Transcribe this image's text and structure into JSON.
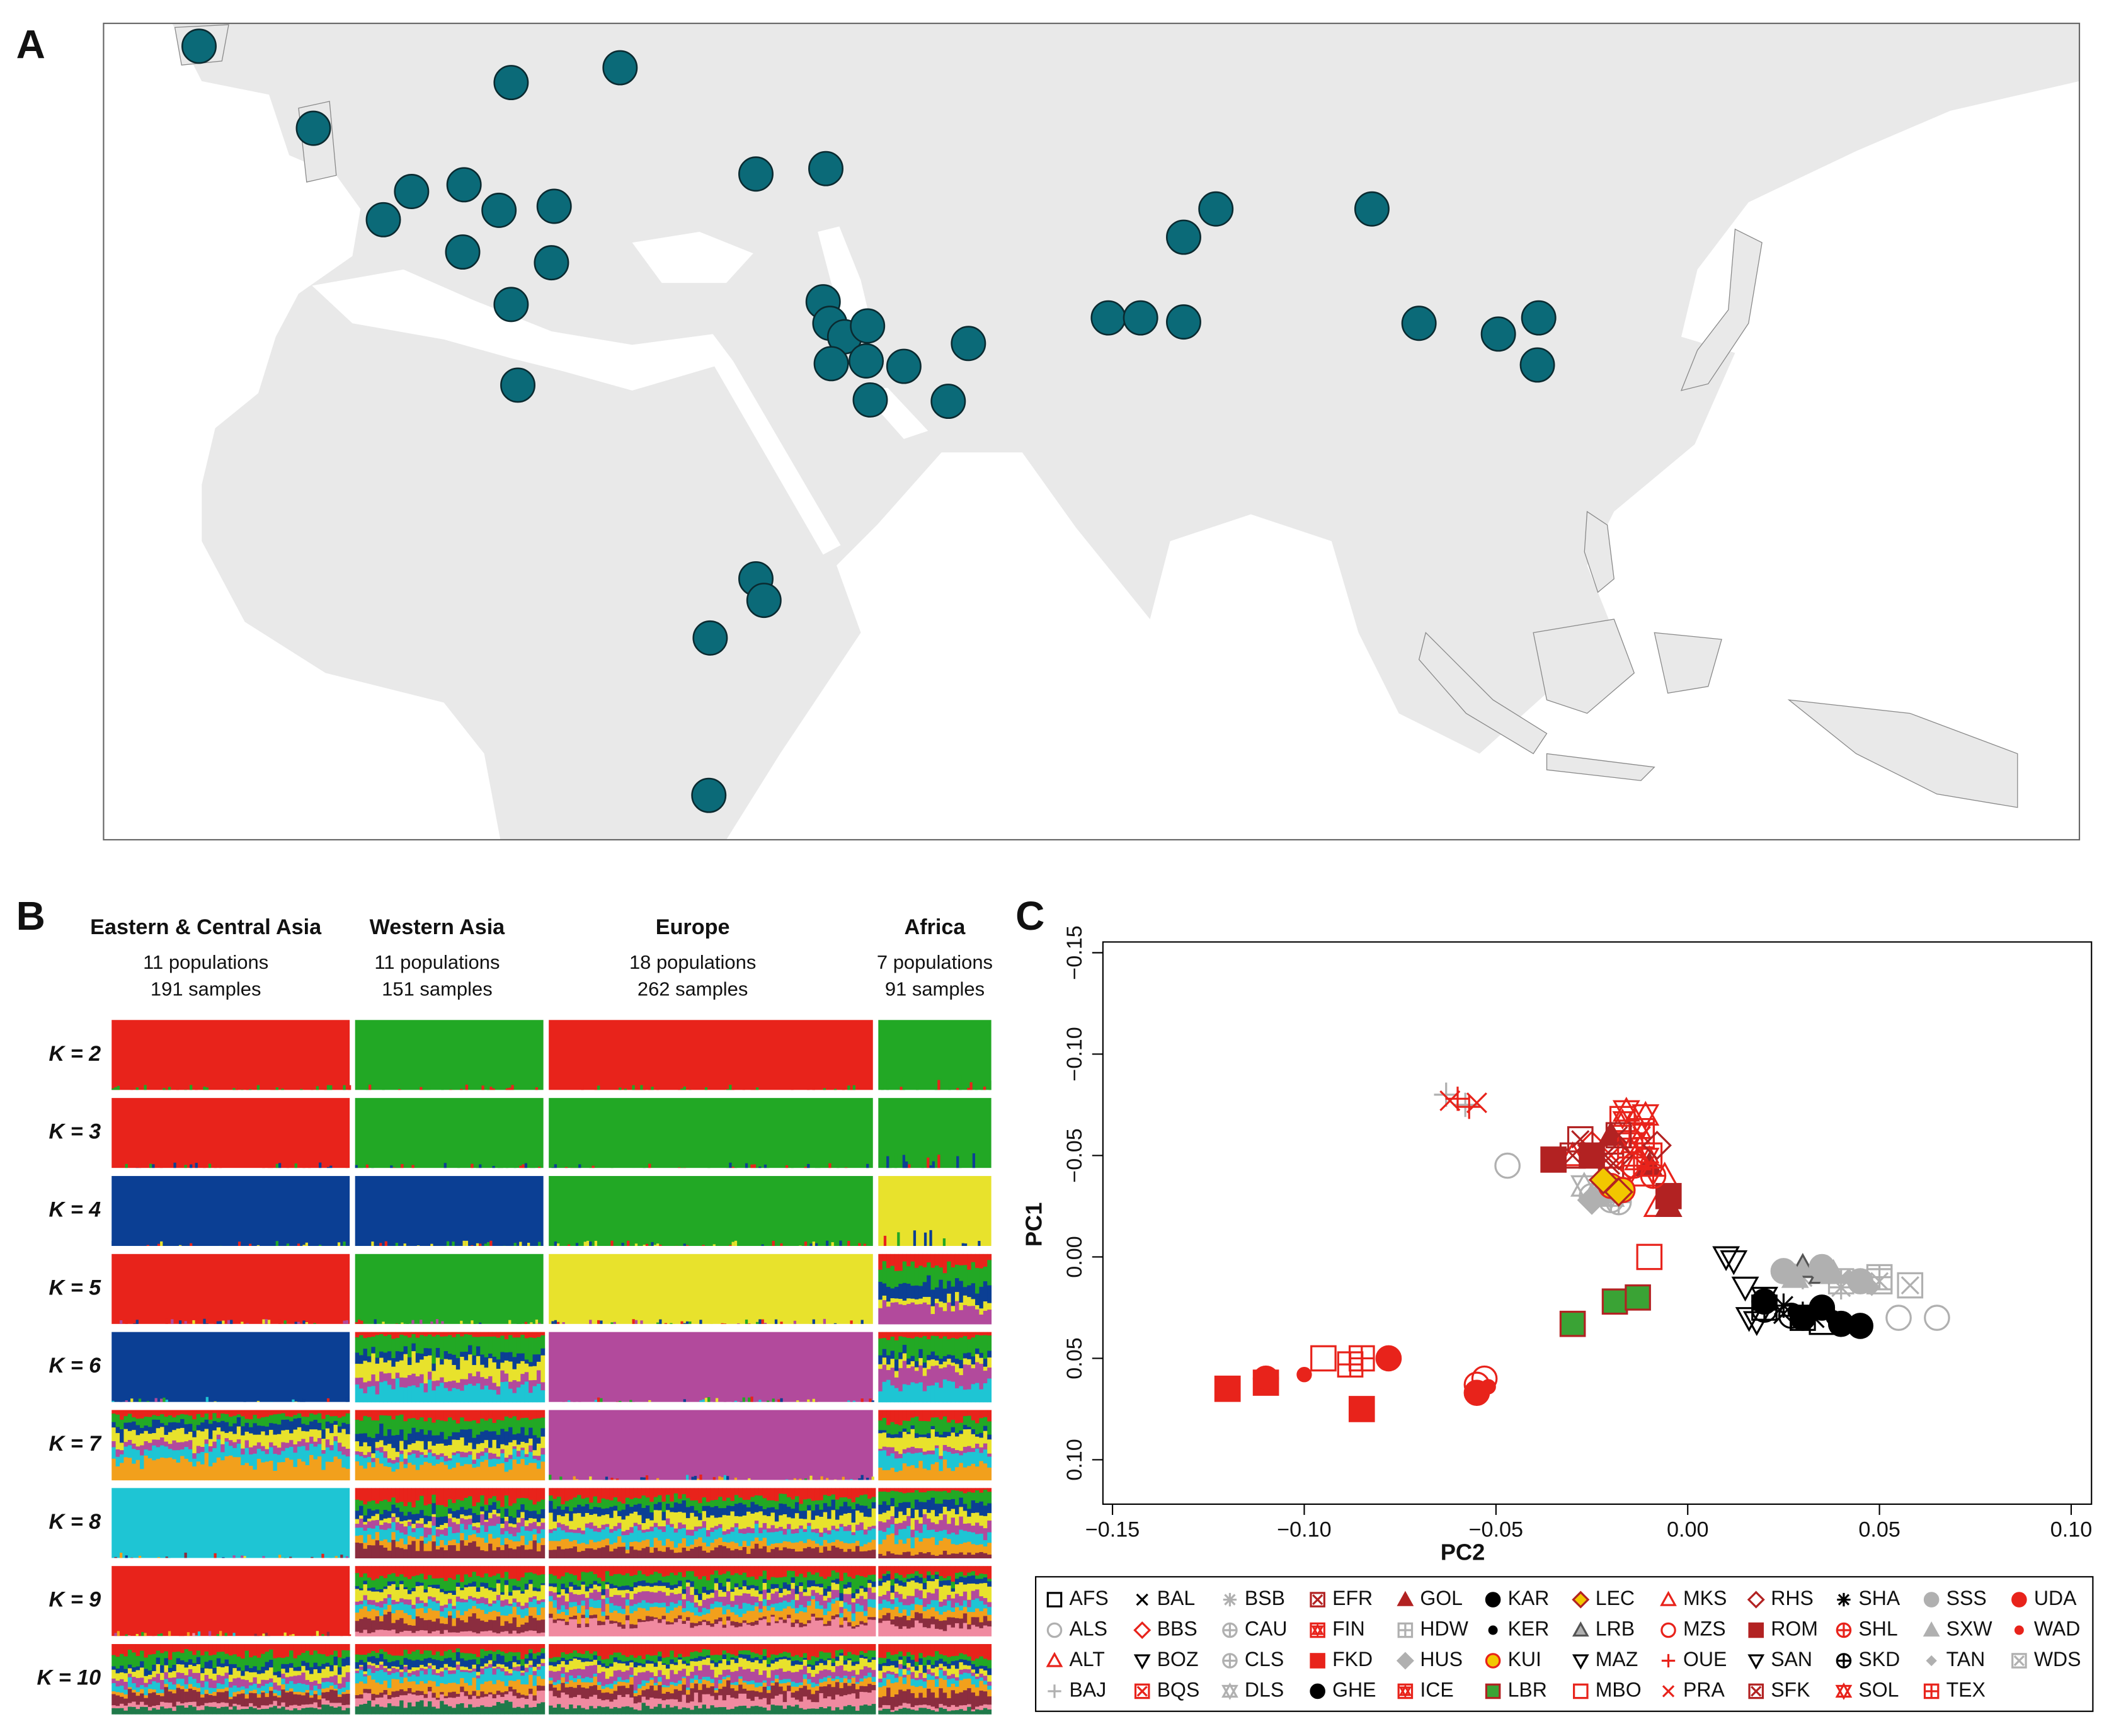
{
  "panels": {
    "a": "A",
    "b": "B",
    "c": "C"
  },
  "structure": {
    "groups": [
      {
        "name": "Eastern & Central Asia",
        "populations": "11 populations",
        "samples": "191 samples"
      },
      {
        "name": "Western Asia",
        "populations": "11 populations",
        "samples": "151 samples"
      },
      {
        "name": "Europe",
        "populations": "18 populations",
        "samples": "262 samples"
      },
      {
        "name": "Africa",
        "populations": "7 populations",
        "samples": "91 samples"
      }
    ],
    "k_labels": [
      "K = 2",
      "K = 3",
      "K = 4",
      "K = 5",
      "K = 6",
      "K = 7",
      "K = 8",
      "K = 9",
      "K = 10"
    ]
  },
  "chart_data": {
    "type": "scatter",
    "xlabel": "PC2",
    "ylabel": "PC1",
    "xlim": [
      -0.1525,
      0.1053
    ],
    "ylim": [
      -0.1553,
      0.1219
    ],
    "y_inverted": true,
    "xticks": [
      {
        "value": -0.15,
        "label": "−0.15"
      },
      {
        "value": -0.1,
        "label": "−0.10"
      },
      {
        "value": -0.05,
        "label": "−0.05"
      },
      {
        "value": 0,
        "label": "0.00"
      },
      0.05,
      {
        "value": 0.1,
        "label": "0.10"
      }
    ],
    "yticks": [
      {
        "value": -0.15,
        "label": "−0.15"
      },
      {
        "value": -0.1,
        "label": "−0.10"
      },
      {
        "value": -0.05,
        "label": "−0.05"
      },
      {
        "value": 0,
        "label": "0.00"
      },
      0.05,
      {
        "value": 0.1,
        "label": "0.10"
      }
    ],
    "legend_columns": 12,
    "series": [
      {
        "name": "AFS",
        "color": "#000000",
        "marker": "square",
        "filled": false,
        "x": [
          0.02,
          0.03,
          0.035
        ],
        "y": [
          0.025,
          0.03,
          0.032
        ]
      },
      {
        "name": "ALS",
        "color": "#b0b0b0",
        "marker": "circle",
        "filled": false,
        "x": [
          -0.047,
          0.055,
          0.065
        ],
        "y": [
          -0.045,
          0.03,
          0.03
        ]
      },
      {
        "name": "ALT",
        "color": "#e8231b",
        "marker": "triangle",
        "filled": false,
        "x": [
          -0.03,
          -0.012,
          -0.008
        ],
        "y": [
          -0.05,
          -0.04,
          -0.025
        ]
      },
      {
        "name": "BAJ",
        "color": "#b0b0b0",
        "marker": "plus",
        "filled": false,
        "x": [
          -0.063,
          -0.058
        ],
        "y": [
          -0.08,
          -0.075
        ]
      },
      {
        "name": "BAL",
        "color": "#000000",
        "marker": "x",
        "filled": false,
        "x": [
          0.025,
          0.033
        ],
        "y": [
          0.028,
          0.03
        ]
      },
      {
        "name": "BBS",
        "color": "#e8231b",
        "marker": "diamond",
        "filled": false,
        "x": [
          -0.025,
          -0.015
        ],
        "y": [
          -0.055,
          -0.045
        ]
      },
      {
        "name": "BOZ",
        "color": "#000000",
        "marker": "dtriangle",
        "filled": false,
        "x": [
          0.01,
          0.016
        ],
        "y": [
          0.0,
          0.03
        ]
      },
      {
        "name": "BQS",
        "color": "#e8231b",
        "marker": "boxx",
        "filled": false,
        "x": [
          -0.02,
          -0.012
        ],
        "y": [
          -0.05,
          -0.06
        ]
      },
      {
        "name": "BSB",
        "color": "#b0b0b0",
        "marker": "asterisk",
        "filled": false,
        "x": [
          0.03,
          0.04
        ],
        "y": [
          0.01,
          0.015
        ]
      },
      {
        "name": "CAU",
        "color": "#b0b0b0",
        "marker": "circleplus",
        "filled": false,
        "x": [
          -0.025,
          -0.02
        ],
        "y": [
          -0.03,
          -0.028
        ]
      },
      {
        "name": "CLS",
        "color": "#b0b0b0",
        "marker": "circleplus",
        "filled": false,
        "x": [
          -0.022,
          -0.018
        ],
        "y": [
          -0.032,
          -0.027
        ]
      },
      {
        "name": "DLS",
        "color": "#b0b0b0",
        "marker": "star",
        "filled": false,
        "x": [
          -0.027,
          -0.02
        ],
        "y": [
          -0.035,
          -0.03
        ]
      },
      {
        "name": "EFR",
        "color": "#b22222",
        "marker": "boxx",
        "filled": false,
        "x": [
          -0.03,
          -0.02
        ],
        "y": [
          -0.05,
          -0.045
        ]
      },
      {
        "name": "FIN",
        "color": "#e8231b",
        "marker": "boxstar",
        "filled": false,
        "x": [
          -0.017,
          -0.012
        ],
        "y": [
          -0.068,
          -0.062
        ]
      },
      {
        "name": "FKD",
        "color": "#e8231b",
        "marker": "square",
        "filled": true,
        "x": [
          -0.12,
          -0.11,
          -0.085
        ],
        "y": [
          0.065,
          0.062,
          0.075
        ]
      },
      {
        "name": "GHE",
        "color": "#000000",
        "marker": "circle",
        "filled": true,
        "x": [
          0.03,
          0.04
        ],
        "y": [
          0.03,
          0.033
        ]
      },
      {
        "name": "GOL",
        "color": "#b22222",
        "marker": "triangle",
        "filled": true,
        "x": [
          -0.02,
          -0.01,
          -0.005
        ],
        "y": [
          -0.06,
          -0.045,
          -0.025
        ]
      },
      {
        "name": "HDW",
        "color": "#b0b0b0",
        "marker": "squareplus",
        "filled": false,
        "x": [
          0.04,
          0.05
        ],
        "y": [
          0.012,
          0.01
        ]
      },
      {
        "name": "HUS",
        "color": "#b0b0b0",
        "marker": "diamond",
        "filled": true,
        "x": [
          -0.025,
          -0.022
        ],
        "y": [
          -0.028,
          -0.032
        ]
      },
      {
        "name": "ICE",
        "color": "#e8231b",
        "marker": "boxstar",
        "filled": false,
        "x": [
          -0.015,
          -0.01
        ],
        "y": [
          -0.055,
          -0.05
        ]
      },
      {
        "name": "KAR",
        "color": "#000000",
        "marker": "circle",
        "filled": true,
        "x": [
          0.02,
          0.035,
          0.045
        ],
        "y": [
          0.022,
          0.025,
          0.034
        ]
      },
      {
        "name": "KER",
        "color": "#000000",
        "marker": "smallcircle",
        "filled": true,
        "x": [
          0.028,
          0.038
        ],
        "y": [
          0.027,
          0.03
        ]
      },
      {
        "name": "KUI",
        "color": "#e8231b",
        "marker": "circle",
        "filled": true,
        "fill_color": "#f2c700",
        "x": [
          -0.02,
          -0.017
        ],
        "y": [
          -0.035,
          -0.033
        ]
      },
      {
        "name": "LBR",
        "color": "#b22222",
        "marker": "square",
        "filled": true,
        "fill_color": "#3aa335",
        "x": [
          -0.03,
          -0.019,
          -0.013
        ],
        "y": [
          0.033,
          0.022,
          0.02
        ]
      },
      {
        "name": "LEC",
        "color": "#b22222",
        "marker": "diamond",
        "filled": true,
        "fill_color": "#f2c700",
        "x": [
          -0.022,
          -0.018
        ],
        "y": [
          -0.038,
          -0.032
        ]
      },
      {
        "name": "LRB",
        "color": "#555555",
        "marker": "triangle",
        "filled": true,
        "fill_color": "#b0b0b0",
        "x": [
          0.03,
          0.035
        ],
        "y": [
          0.005,
          0.008
        ]
      },
      {
        "name": "MAZ",
        "color": "#000000",
        "marker": "dtriangle",
        "filled": false,
        "x": [
          0.015,
          0.02
        ],
        "y": [
          0.015,
          0.02
        ]
      },
      {
        "name": "MBO",
        "color": "#e8231b",
        "marker": "square",
        "filled": false,
        "x": [
          -0.12,
          -0.095,
          -0.01
        ],
        "y": [
          0.065,
          0.05,
          0.0
        ]
      },
      {
        "name": "MKS",
        "color": "#e8231b",
        "marker": "triangle",
        "filled": false,
        "x": [
          -0.013,
          -0.006
        ],
        "y": [
          -0.048,
          -0.04
        ]
      },
      {
        "name": "MZS",
        "color": "#e8231b",
        "marker": "circle",
        "filled": false,
        "x": [
          -0.055,
          -0.053
        ],
        "y": [
          0.063,
          0.06
        ]
      },
      {
        "name": "OUE",
        "color": "#e8231b",
        "marker": "plus",
        "filled": false,
        "x": [
          -0.06,
          -0.057
        ],
        "y": [
          -0.078,
          -0.074
        ]
      },
      {
        "name": "PRA",
        "color": "#e8231b",
        "marker": "x",
        "filled": false,
        "x": [
          -0.062,
          -0.055
        ],
        "y": [
          -0.077,
          -0.076
        ]
      },
      {
        "name": "RHS",
        "color": "#b22222",
        "marker": "diamond",
        "filled": false,
        "x": [
          -0.018,
          -0.008
        ],
        "y": [
          -0.05,
          -0.055
        ]
      },
      {
        "name": "ROM",
        "color": "#b22222",
        "marker": "square",
        "filled": true,
        "x": [
          -0.035,
          -0.025,
          -0.005
        ],
        "y": [
          -0.048,
          -0.05,
          -0.03
        ]
      },
      {
        "name": "SAN",
        "color": "#000000",
        "marker": "dtriangle",
        "filled": false,
        "x": [
          0.012,
          0.018
        ],
        "y": [
          0.002,
          0.032
        ]
      },
      {
        "name": "SFK",
        "color": "#b22222",
        "marker": "boxx",
        "filled": false,
        "x": [
          -0.028,
          -0.018
        ],
        "y": [
          -0.058,
          -0.06
        ]
      },
      {
        "name": "SHA",
        "color": "#000000",
        "marker": "asterisk",
        "filled": false,
        "x": [
          0.025,
          0.03
        ],
        "y": [
          0.024,
          0.028
        ]
      },
      {
        "name": "SHL",
        "color": "#e8231b",
        "marker": "circleplus",
        "filled": false,
        "x": [
          -0.014,
          -0.009
        ],
        "y": [
          -0.045,
          -0.04
        ]
      },
      {
        "name": "SKD",
        "color": "#000000",
        "marker": "circleplus",
        "filled": false,
        "x": [
          0.02,
          0.027
        ],
        "y": [
          0.026,
          0.029
        ]
      },
      {
        "name": "SOL",
        "color": "#e8231b",
        "marker": "star",
        "filled": false,
        "x": [
          -0.016,
          -0.011
        ],
        "y": [
          -0.072,
          -0.07
        ]
      },
      {
        "name": "SSS",
        "color": "#b0b0b0",
        "marker": "circle",
        "filled": true,
        "x": [
          0.025,
          0.035,
          0.045
        ],
        "y": [
          0.007,
          0.005,
          0.012
        ]
      },
      {
        "name": "SXW",
        "color": "#b0b0b0",
        "marker": "triangle",
        "filled": true,
        "x": [
          0.028,
          0.038
        ],
        "y": [
          0.01,
          0.008
        ]
      },
      {
        "name": "TAN",
        "color": "#b0b0b0",
        "marker": "smalldiamond",
        "filled": true,
        "x": [
          0.042,
          0.048
        ],
        "y": [
          0.01,
          0.015
        ]
      },
      {
        "name": "TEX",
        "color": "#e8231b",
        "marker": "squareplus",
        "filled": false,
        "x": [
          -0.088,
          -0.085
        ],
        "y": [
          0.053,
          0.05
        ]
      },
      {
        "name": "UDA",
        "color": "#e8231b",
        "marker": "circle",
        "filled": true,
        "x": [
          -0.11,
          -0.078,
          -0.055
        ],
        "y": [
          0.06,
          0.05,
          0.067
        ]
      },
      {
        "name": "WAD",
        "color": "#e8231b",
        "marker": "smallcircle",
        "filled": true,
        "x": [
          -0.1,
          -0.052
        ],
        "y": [
          0.058,
          0.064
        ]
      },
      {
        "name": "WDS",
        "color": "#b0b0b0",
        "marker": "boxx",
        "filled": false,
        "x": [
          0.05,
          0.058
        ],
        "y": [
          0.012,
          0.014
        ]
      }
    ]
  }
}
